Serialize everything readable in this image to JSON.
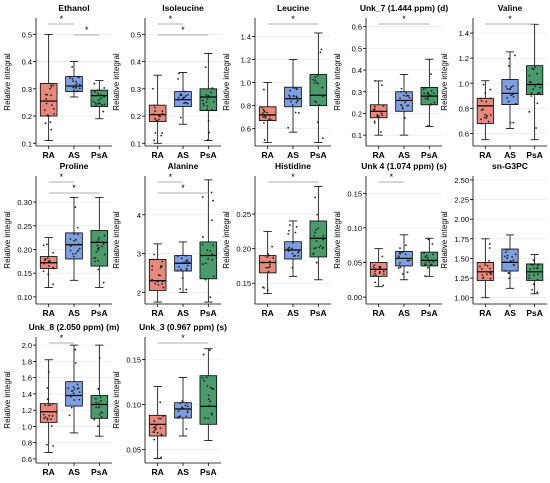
{
  "colors": {
    "RA": "#e8897d",
    "AS": "#7f9fe3",
    "PsA": "#4a9a6c",
    "sig_line": "#999999",
    "axis": "#000000"
  },
  "chart_data": [
    {
      "type": "box",
      "title": "Ethanol",
      "ylabel": "Relative integral",
      "categories": [
        "RA",
        "AS",
        "PsA"
      ],
      "yticks": [
        0.1,
        0.2,
        0.3,
        0.4,
        0.5
      ],
      "ylim": [
        0.09,
        0.56
      ],
      "boxes": [
        {
          "q1": 0.2,
          "median": 0.255,
          "q3": 0.32,
          "min": 0.11,
          "max": 0.5
        },
        {
          "q1": 0.29,
          "median": 0.31,
          "q3": 0.345,
          "min": 0.27,
          "max": 0.4
        },
        {
          "q1": 0.235,
          "median": 0.275,
          "q3": 0.295,
          "min": 0.19,
          "max": 0.33
        }
      ],
      "significance": [
        {
          "from": 0,
          "to": 1,
          "label": "*"
        },
        {
          "from": 1,
          "to": 2,
          "label": "*"
        }
      ]
    },
    {
      "type": "box",
      "title": "Isoleucine",
      "ylabel": "Relative integral",
      "categories": [
        "RA",
        "AS",
        "PsA"
      ],
      "yticks": [
        0.1,
        0.2,
        0.3,
        0.4,
        0.5
      ],
      "ylim": [
        0.09,
        0.56
      ],
      "boxes": [
        {
          "q1": 0.18,
          "median": 0.205,
          "q3": 0.24,
          "min": 0.1,
          "max": 0.35
        },
        {
          "q1": 0.235,
          "median": 0.26,
          "q3": 0.29,
          "min": 0.17,
          "max": 0.36
        },
        {
          "q1": 0.22,
          "median": 0.27,
          "q3": 0.3,
          "min": 0.11,
          "max": 0.43
        }
      ],
      "significance": [
        {
          "from": 0,
          "to": 1,
          "label": "*"
        },
        {
          "from": 0,
          "to": 2,
          "label": "*"
        }
      ]
    },
    {
      "type": "box",
      "title": "Leucine",
      "ylabel": "Relative integral",
      "categories": [
        "RA",
        "AS",
        "PsA"
      ],
      "yticks": [
        0.6,
        0.8,
        1.0,
        1.2,
        1.4
      ],
      "ylim": [
        0.45,
        1.56
      ],
      "boxes": [
        {
          "q1": 0.67,
          "median": 0.72,
          "q3": 0.79,
          "min": 0.48,
          "max": 1.0
        },
        {
          "q1": 0.79,
          "median": 0.86,
          "q3": 0.96,
          "min": 0.57,
          "max": 1.2
        },
        {
          "q1": 0.8,
          "median": 0.89,
          "q3": 1.07,
          "min": 0.48,
          "max": 1.43
        }
      ],
      "significance": [
        {
          "from": 0,
          "to": 2,
          "label": "*"
        }
      ]
    },
    {
      "type": "box",
      "title": "Unk_7 (1.444 ppm) (d)",
      "ylabel": "Relative integral",
      "categories": [
        "RA",
        "AS",
        "PsA"
      ],
      "yticks": [
        0.1,
        0.2,
        0.3,
        0.4,
        0.5,
        0.6
      ],
      "ylim": [
        0.05,
        0.64
      ],
      "boxes": [
        {
          "q1": 0.18,
          "median": 0.21,
          "q3": 0.24,
          "min": 0.1,
          "max": 0.35
        },
        {
          "q1": 0.21,
          "median": 0.26,
          "q3": 0.3,
          "min": 0.1,
          "max": 0.38
        },
        {
          "q1": 0.24,
          "median": 0.28,
          "q3": 0.32,
          "min": 0.14,
          "max": 0.45
        }
      ],
      "significance": [
        {
          "from": 0,
          "to": 2,
          "label": "*"
        }
      ]
    },
    {
      "type": "box",
      "title": "Valine",
      "ylabel": "Relative integral",
      "categories": [
        "RA",
        "AS",
        "PsA"
      ],
      "yticks": [
        0.6,
        0.8,
        1.0,
        1.2,
        1.4
      ],
      "ylim": [
        0.5,
        1.52
      ],
      "boxes": [
        {
          "q1": 0.68,
          "median": 0.82,
          "q3": 0.88,
          "min": 0.55,
          "max": 1.02
        },
        {
          "q1": 0.83,
          "median": 0.92,
          "q3": 1.03,
          "min": 0.64,
          "max": 1.25
        },
        {
          "q1": 0.91,
          "median": 0.99,
          "q3": 1.14,
          "min": 0.55,
          "max": 1.47
        }
      ],
      "significance": [
        {
          "from": 0,
          "to": 2,
          "label": "*"
        }
      ]
    },
    {
      "type": "box",
      "title": "Proline",
      "ylabel": "Relative integral",
      "categories": [
        "RA",
        "AS",
        "PsA"
      ],
      "yticks": [
        0.1,
        0.15,
        0.2,
        0.25,
        0.3
      ],
      "ylim": [
        0.085,
        0.355
      ],
      "boxes": [
        {
          "q1": 0.16,
          "median": 0.172,
          "q3": 0.185,
          "min": 0.12,
          "max": 0.225
        },
        {
          "q1": 0.18,
          "median": 0.21,
          "q3": 0.235,
          "min": 0.135,
          "max": 0.31
        },
        {
          "q1": 0.165,
          "median": 0.215,
          "q3": 0.24,
          "min": 0.12,
          "max": 0.31
        }
      ],
      "significance": [
        {
          "from": 0,
          "to": 1,
          "label": "*"
        },
        {
          "from": 0,
          "to": 2,
          "label": "*"
        }
      ]
    },
    {
      "type": "box",
      "title": "Alanine",
      "ylabel": "Relative integral",
      "categories": [
        "RA",
        "AS",
        "PsA"
      ],
      "yticks": [
        2.0,
        3.0,
        4.0
      ],
      "ylim": [
        1.7,
        5.0
      ],
      "boxes": [
        {
          "q1": 2.05,
          "median": 2.3,
          "q3": 2.85,
          "min": 1.75,
          "max": 3.25
        },
        {
          "q1": 2.55,
          "median": 2.75,
          "q3": 2.95,
          "min": 2.0,
          "max": 3.3
        },
        {
          "q1": 2.35,
          "median": 2.95,
          "q3": 3.3,
          "min": 1.75,
          "max": 4.9
        }
      ],
      "significance": [
        {
          "from": 0,
          "to": 1,
          "label": "*"
        },
        {
          "from": 0,
          "to": 2,
          "label": "*"
        }
      ]
    },
    {
      "type": "box",
      "title": "Histidine",
      "ylabel": "Relative integral",
      "categories": [
        "RA",
        "AS",
        "PsA"
      ],
      "yticks": [
        0.15,
        0.2,
        0.25
      ],
      "ylim": [
        0.12,
        0.305
      ],
      "boxes": [
        {
          "q1": 0.165,
          "median": 0.18,
          "q3": 0.19,
          "min": 0.135,
          "max": 0.225
        },
        {
          "q1": 0.185,
          "median": 0.198,
          "q3": 0.21,
          "min": 0.16,
          "max": 0.24
        },
        {
          "q1": 0.188,
          "median": 0.215,
          "q3": 0.24,
          "min": 0.155,
          "max": 0.29
        }
      ],
      "significance": [
        {
          "from": 0,
          "to": 2,
          "label": "*"
        }
      ]
    },
    {
      "type": "box",
      "title": "Unk 4 (1.074 ppm) (s)",
      "ylabel": "Relative integral",
      "categories": [
        "RA",
        "AS",
        "PsA"
      ],
      "yticks": [
        0.0,
        0.05,
        0.1,
        0.15
      ],
      "ylim": [
        -0.01,
        0.175
      ],
      "boxes": [
        {
          "q1": 0.03,
          "median": 0.04,
          "q3": 0.05,
          "min": 0.015,
          "max": 0.07
        },
        {
          "q1": 0.045,
          "median": 0.056,
          "q3": 0.066,
          "min": 0.025,
          "max": 0.09
        },
        {
          "q1": 0.045,
          "median": 0.053,
          "q3": 0.065,
          "min": 0.03,
          "max": 0.085
        }
      ],
      "significance": [
        {
          "from": 0,
          "to": 1,
          "label": "*"
        }
      ]
    },
    {
      "type": "box",
      "title": "sn-G3PC",
      "ylabel": "Relative integral",
      "categories": [
        "RA",
        "AS",
        "PsA"
      ],
      "yticks": [
        1.0,
        1.25,
        1.5,
        1.75,
        2.0,
        2.25,
        2.5
      ],
      "ylim": [
        0.92,
        2.55
      ],
      "boxes": [
        {
          "q1": 1.22,
          "median": 1.33,
          "q3": 1.45,
          "min": 1.0,
          "max": 1.75
        },
        {
          "q1": 1.34,
          "median": 1.45,
          "q3": 1.62,
          "min": 1.12,
          "max": 1.8
        },
        {
          "q1": 1.22,
          "median": 1.33,
          "q3": 1.43,
          "min": 1.05,
          "max": 1.55
        }
      ],
      "significance": []
    },
    {
      "type": "box",
      "title": "Unk_8 (2.050 ppm) (m)",
      "ylabel": "Relative integral",
      "categories": [
        "RA",
        "AS",
        "PsA"
      ],
      "yticks": [
        0.6,
        0.8,
        1.0,
        1.2,
        1.4,
        1.6,
        1.8,
        2.0
      ],
      "ylim": [
        0.55,
        2.1
      ],
      "boxes": [
        {
          "q1": 1.05,
          "median": 1.18,
          "q3": 1.28,
          "min": 0.68,
          "max": 1.82
        },
        {
          "q1": 1.25,
          "median": 1.38,
          "q3": 1.55,
          "min": 0.92,
          "max": 2.0
        },
        {
          "q1": 1.1,
          "median": 1.27,
          "q3": 1.38,
          "min": 0.88,
          "max": 2.0
        }
      ],
      "significance": [
        {
          "from": 0,
          "to": 1,
          "label": "*"
        }
      ]
    },
    {
      "type": "box",
      "title": "Unk_3 (0.967 ppm) (s)",
      "ylabel": "Relative integral",
      "categories": [
        "RA",
        "AS",
        "PsA"
      ],
      "yticks": [
        0.05,
        0.1,
        0.15
      ],
      "ylim": [
        0.035,
        0.175
      ],
      "boxes": [
        {
          "q1": 0.065,
          "median": 0.078,
          "q3": 0.088,
          "min": 0.04,
          "max": 0.12
        },
        {
          "q1": 0.085,
          "median": 0.095,
          "q3": 0.102,
          "min": 0.065,
          "max": 0.13
        },
        {
          "q1": 0.078,
          "median": 0.098,
          "q3": 0.132,
          "min": 0.06,
          "max": 0.162
        }
      ],
      "significance": [
        {
          "from": 0,
          "to": 2,
          "label": "*"
        }
      ]
    }
  ]
}
